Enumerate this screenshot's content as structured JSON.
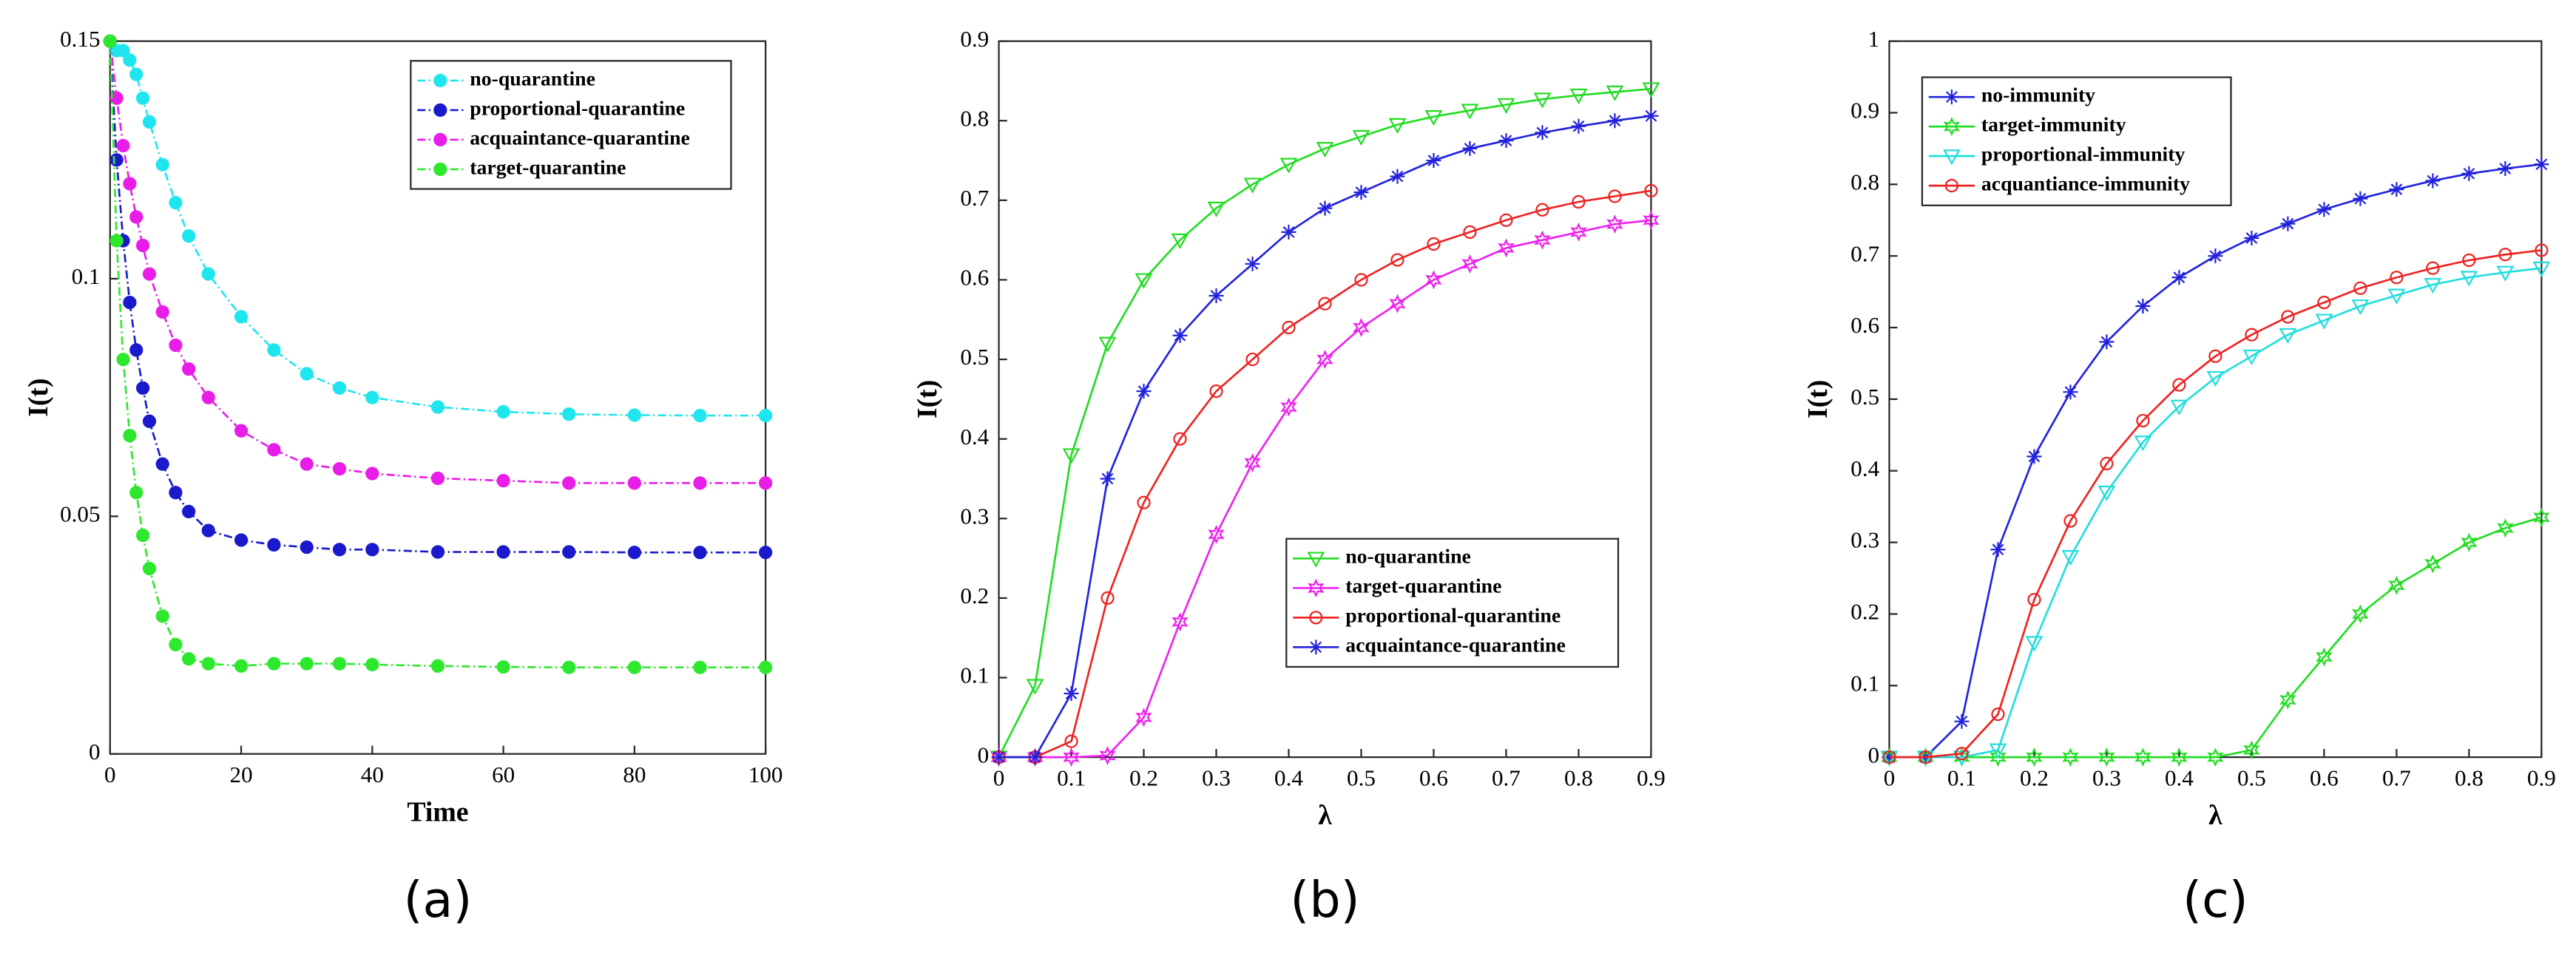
{
  "chart_data": [
    {
      "type": "line",
      "panel_label": "(a)",
      "xlabel": "Time",
      "ylabel": "I(t)",
      "x": [
        0,
        1,
        2,
        3,
        4,
        5,
        6,
        8,
        10,
        12,
        15,
        20,
        25,
        30,
        35,
        40,
        50,
        60,
        70,
        80,
        90,
        100
      ],
      "xlim": [
        0,
        100
      ],
      "xticks": [
        0,
        20,
        40,
        60,
        80,
        100
      ],
      "ylim": [
        0,
        0.15
      ],
      "yticks": [
        0,
        0.05,
        0.1,
        0.15
      ],
      "legend": "upper right",
      "dashed": true,
      "series": [
        {
          "name": "no-quarantine",
          "color": "#1fe6ee",
          "marker": "circle",
          "filled": true,
          "values": [
            0.15,
            0.148,
            0.148,
            0.146,
            0.143,
            0.138,
            0.133,
            0.124,
            0.116,
            0.109,
            0.101,
            0.092,
            0.085,
            0.08,
            0.077,
            0.075,
            0.073,
            0.072,
            0.0715,
            0.0713,
            0.0712,
            0.0712
          ]
        },
        {
          "name": "proportional-quarantine",
          "color": "#1a1acc",
          "marker": "circle",
          "filled": true,
          "values": [
            0.15,
            0.125,
            0.108,
            0.095,
            0.085,
            0.077,
            0.07,
            0.061,
            0.055,
            0.051,
            0.047,
            0.045,
            0.044,
            0.0435,
            0.043,
            0.043,
            0.0425,
            0.0425,
            0.0425,
            0.0424,
            0.0424,
            0.0424
          ]
        },
        {
          "name": "acquaintance-quarantine",
          "color": "#e81ee8",
          "marker": "circle",
          "filled": true,
          "values": [
            0.15,
            0.138,
            0.128,
            0.12,
            0.113,
            0.107,
            0.101,
            0.093,
            0.086,
            0.081,
            0.075,
            0.068,
            0.064,
            0.061,
            0.06,
            0.059,
            0.058,
            0.0575,
            0.057,
            0.057,
            0.057,
            0.057
          ]
        },
        {
          "name": "target-quarantine",
          "color": "#2ee82e",
          "marker": "circle",
          "filled": true,
          "values": [
            0.15,
            0.108,
            0.083,
            0.067,
            0.055,
            0.046,
            0.039,
            0.029,
            0.023,
            0.02,
            0.019,
            0.0185,
            0.019,
            0.019,
            0.019,
            0.0188,
            0.0185,
            0.0183,
            0.0182,
            0.0182,
            0.0182,
            0.0182
          ]
        }
      ]
    },
    {
      "type": "line",
      "panel_label": "(b)",
      "xlabel": "λ",
      "ylabel": "I(t)",
      "x": [
        0,
        0.05,
        0.1,
        0.15,
        0.2,
        0.25,
        0.3,
        0.35,
        0.4,
        0.45,
        0.5,
        0.55,
        0.6,
        0.65,
        0.7,
        0.75,
        0.8,
        0.85,
        0.9
      ],
      "xlim": [
        0,
        0.9
      ],
      "xticks": [
        0,
        0.1,
        0.2,
        0.3,
        0.4,
        0.5,
        0.6,
        0.7,
        0.8,
        0.9
      ],
      "ylim": [
        0,
        0.9
      ],
      "yticks": [
        0,
        0.1,
        0.2,
        0.3,
        0.4,
        0.5,
        0.6,
        0.7,
        0.8,
        0.9
      ],
      "legend": "lower right",
      "dashed": false,
      "series": [
        {
          "name": "no-quarantine",
          "color": "#22dd22",
          "marker": "triangle-down",
          "filled": false,
          "values": [
            0,
            0.09,
            0.38,
            0.52,
            0.6,
            0.65,
            0.69,
            0.72,
            0.745,
            0.765,
            0.78,
            0.795,
            0.805,
            0.813,
            0.82,
            0.827,
            0.832,
            0.836,
            0.84
          ]
        },
        {
          "name": "target-quarantine",
          "color": "#ee22ee",
          "marker": "star",
          "filled": false,
          "values": [
            0,
            0,
            0,
            0.002,
            0.05,
            0.17,
            0.28,
            0.37,
            0.44,
            0.5,
            0.54,
            0.57,
            0.6,
            0.62,
            0.64,
            0.65,
            0.66,
            0.67,
            0.675
          ]
        },
        {
          "name": "proportional-quarantine",
          "color": "#ee2222",
          "marker": "circle",
          "filled": false,
          "values": [
            0,
            0,
            0.02,
            0.2,
            0.32,
            0.4,
            0.46,
            0.5,
            0.54,
            0.57,
            0.6,
            0.625,
            0.645,
            0.66,
            0.675,
            0.688,
            0.698,
            0.705,
            0.712
          ]
        },
        {
          "name": "acquaintance-quarantine",
          "color": "#2222dd",
          "marker": "asterisk",
          "filled": false,
          "values": [
            0,
            0,
            0.08,
            0.35,
            0.46,
            0.53,
            0.58,
            0.62,
            0.66,
            0.69,
            0.71,
            0.73,
            0.75,
            0.765,
            0.775,
            0.785,
            0.793,
            0.8,
            0.806
          ]
        }
      ]
    },
    {
      "type": "line",
      "panel_label": "(c)",
      "xlabel": "λ",
      "ylabel": "I(t)",
      "x": [
        0,
        0.05,
        0.1,
        0.15,
        0.2,
        0.25,
        0.3,
        0.35,
        0.4,
        0.45,
        0.5,
        0.55,
        0.6,
        0.65,
        0.7,
        0.75,
        0.8,
        0.85,
        0.9
      ],
      "xlim": [
        0,
        0.9
      ],
      "xticks": [
        0,
        0.1,
        0.2,
        0.3,
        0.4,
        0.5,
        0.6,
        0.7,
        0.8,
        0.9
      ],
      "ylim": [
        0,
        1
      ],
      "yticks": [
        0,
        0.1,
        0.2,
        0.3,
        0.4,
        0.5,
        0.6,
        0.7,
        0.8,
        0.9,
        1
      ],
      "legend": "upper left",
      "dashed": false,
      "series": [
        {
          "name": "no-immunity",
          "color": "#2222dd",
          "marker": "asterisk",
          "filled": false,
          "values": [
            0,
            0,
            0.05,
            0.29,
            0.42,
            0.51,
            0.58,
            0.63,
            0.67,
            0.7,
            0.725,
            0.745,
            0.765,
            0.78,
            0.793,
            0.805,
            0.815,
            0.822,
            0.828
          ]
        },
        {
          "name": "target-immunity",
          "color": "#22dd22",
          "marker": "star",
          "filled": false,
          "values": [
            0,
            0,
            0,
            0,
            0,
            0,
            0,
            0,
            0,
            0,
            0.01,
            0.08,
            0.14,
            0.2,
            0.24,
            0.27,
            0.3,
            0.32,
            0.335
          ]
        },
        {
          "name": "proportional-immunity",
          "color": "#22dddd",
          "marker": "triangle-down",
          "filled": false,
          "values": [
            0,
            0,
            0,
            0.01,
            0.16,
            0.28,
            0.37,
            0.44,
            0.49,
            0.53,
            0.56,
            0.59,
            0.61,
            0.63,
            0.645,
            0.66,
            0.67,
            0.677,
            0.683
          ]
        },
        {
          "name": "acquantiance-immunity",
          "color": "#ee2222",
          "marker": "circle",
          "filled": false,
          "values": [
            0,
            0,
            0.005,
            0.06,
            0.22,
            0.33,
            0.41,
            0.47,
            0.52,
            0.56,
            0.59,
            0.615,
            0.635,
            0.655,
            0.67,
            0.683,
            0.694,
            0.702,
            0.708
          ]
        }
      ]
    }
  ]
}
